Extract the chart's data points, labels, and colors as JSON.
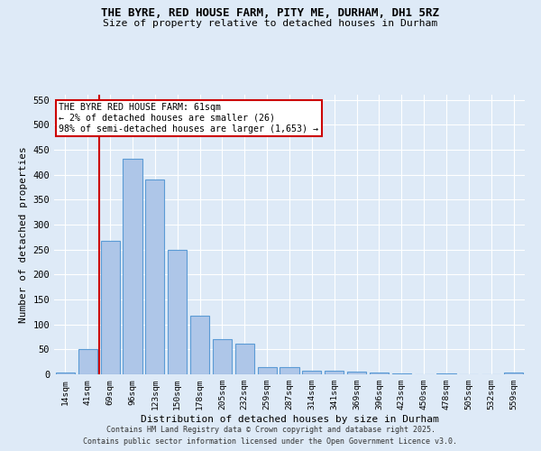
{
  "title1": "THE BYRE, RED HOUSE FARM, PITY ME, DURHAM, DH1 5RZ",
  "title2": "Size of property relative to detached houses in Durham",
  "xlabel": "Distribution of detached houses by size in Durham",
  "ylabel": "Number of detached properties",
  "bar_labels": [
    "14sqm",
    "41sqm",
    "69sqm",
    "96sqm",
    "123sqm",
    "150sqm",
    "178sqm",
    "205sqm",
    "232sqm",
    "259sqm",
    "287sqm",
    "314sqm",
    "341sqm",
    "369sqm",
    "396sqm",
    "423sqm",
    "450sqm",
    "478sqm",
    "505sqm",
    "532sqm",
    "559sqm"
  ],
  "bar_values": [
    3,
    50,
    267,
    432,
    390,
    250,
    117,
    70,
    62,
    14,
    14,
    7,
    8,
    5,
    4,
    1,
    0,
    1,
    0,
    0,
    3
  ],
  "bar_color": "#aec6e8",
  "bar_edge_color": "#5b9bd5",
  "vline_x": 1.5,
  "vline_color": "#cc0000",
  "annotation_text": "THE BYRE RED HOUSE FARM: 61sqm\n← 2% of detached houses are smaller (26)\n98% of semi-detached houses are larger (1,653) →",
  "annotation_box_color": "#ffffff",
  "annotation_box_edge": "#cc0000",
  "ylim": [
    0,
    560
  ],
  "yticks": [
    0,
    50,
    100,
    150,
    200,
    250,
    300,
    350,
    400,
    450,
    500,
    550
  ],
  "footer1": "Contains HM Land Registry data © Crown copyright and database right 2025.",
  "footer2": "Contains public sector information licensed under the Open Government Licence v3.0.",
  "bg_color": "#deeaf7",
  "grid_color": "#ffffff"
}
